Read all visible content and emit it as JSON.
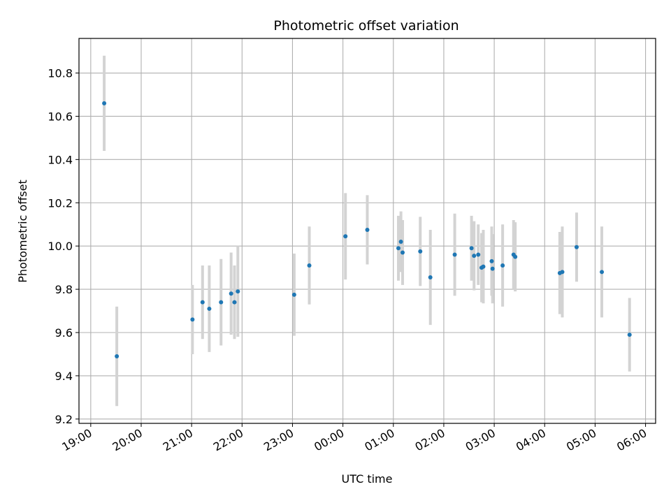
{
  "chart_data": {
    "type": "scatter",
    "title": "Photometric offset variation",
    "xlabel": "UTC time",
    "ylabel": "Photometric offset",
    "grid": true,
    "xlim": [
      "18:46",
      "06:12"
    ],
    "ylim": [
      9.18,
      10.96
    ],
    "x_ticks": [
      "19:00",
      "20:00",
      "21:00",
      "22:00",
      "23:00",
      "00:00",
      "01:00",
      "02:00",
      "03:00",
      "04:00",
      "05:00",
      "06:00"
    ],
    "y_ticks": [
      "9.2",
      "9.4",
      "9.6",
      "9.8",
      "10.0",
      "10.2",
      "10.4",
      "10.6",
      "10.8"
    ],
    "colors": {
      "points": "#1f77b4",
      "error_bars": "#d3d3d3",
      "grid": "#b0b0b0"
    },
    "points": [
      {
        "x": "19:16",
        "y": 10.66,
        "err": 0.22
      },
      {
        "x": "19:31",
        "y": 9.49,
        "err": 0.23
      },
      {
        "x": "21:01",
        "y": 9.66,
        "err": 0.16
      },
      {
        "x": "21:13",
        "y": 9.74,
        "err": 0.17
      },
      {
        "x": "21:21",
        "y": 9.71,
        "err": 0.2
      },
      {
        "x": "21:35",
        "y": 9.74,
        "err": 0.2
      },
      {
        "x": "21:47",
        "y": 9.78,
        "err": 0.19
      },
      {
        "x": "21:51",
        "y": 9.74,
        "err": 0.17
      },
      {
        "x": "21:55",
        "y": 9.79,
        "err": 0.21
      },
      {
        "x": "23:02",
        "y": 9.775,
        "err": 0.19
      },
      {
        "x": "23:20",
        "y": 9.91,
        "err": 0.18
      },
      {
        "x": "00:03",
        "y": 10.045,
        "err": 0.2
      },
      {
        "x": "00:29",
        "y": 10.075,
        "err": 0.16
      },
      {
        "x": "01:06",
        "y": 9.99,
        "err": 0.15
      },
      {
        "x": "01:09",
        "y": 10.02,
        "err": 0.14
      },
      {
        "x": "01:11",
        "y": 9.97,
        "err": 0.15
      },
      {
        "x": "01:32",
        "y": 9.975,
        "err": 0.16
      },
      {
        "x": "01:44",
        "y": 9.855,
        "err": 0.22
      },
      {
        "x": "02:13",
        "y": 9.96,
        "err": 0.19
      },
      {
        "x": "02:33",
        "y": 9.99,
        "err": 0.15
      },
      {
        "x": "02:36",
        "y": 9.955,
        "err": 0.16
      },
      {
        "x": "02:41",
        "y": 9.96,
        "err": 0.14
      },
      {
        "x": "02:45",
        "y": 9.9,
        "err": 0.16
      },
      {
        "x": "02:47",
        "y": 9.905,
        "err": 0.17
      },
      {
        "x": "02:57",
        "y": 9.93,
        "err": 0.16
      },
      {
        "x": "02:58",
        "y": 9.895,
        "err": 0.16
      },
      {
        "x": "03:10",
        "y": 9.91,
        "err": 0.19
      },
      {
        "x": "03:23",
        "y": 9.96,
        "err": 0.16
      },
      {
        "x": "03:25",
        "y": 9.95,
        "err": 0.16
      },
      {
        "x": "04:18",
        "y": 9.875,
        "err": 0.19
      },
      {
        "x": "04:21",
        "y": 9.88,
        "err": 0.21
      },
      {
        "x": "04:38",
        "y": 9.995,
        "err": 0.16
      },
      {
        "x": "05:08",
        "y": 9.88,
        "err": 0.21
      },
      {
        "x": "05:41",
        "y": 9.59,
        "err": 0.17
      }
    ]
  }
}
